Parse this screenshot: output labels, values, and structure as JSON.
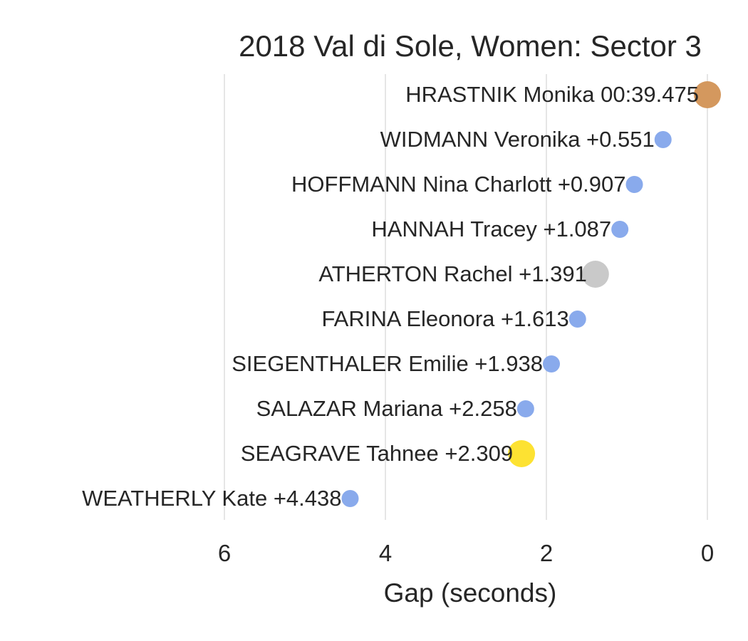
{
  "chart_data": {
    "type": "scatter",
    "title": "2018 Val di Sole, Women: Sector 3",
    "xlabel": "Gap (seconds)",
    "ylabel": "",
    "x_axis_inverted": true,
    "xlim": [
      0,
      7.6
    ],
    "xticks": [
      6,
      4,
      2,
      0
    ],
    "grid": "vertical",
    "points": [
      {
        "label": "HRASTNIK Monika 00:39.475",
        "gap": 0.0,
        "color": "#d4985e",
        "marker": "large"
      },
      {
        "label": "WIDMANN Veronika +0.551",
        "gap": 0.551,
        "color": "#89aaec",
        "marker": "small"
      },
      {
        "label": "HOFFMANN Nina Charlott +0.907",
        "gap": 0.907,
        "color": "#89aaec",
        "marker": "small"
      },
      {
        "label": "HANNAH Tracey +1.087",
        "gap": 1.087,
        "color": "#89aaec",
        "marker": "small"
      },
      {
        "label": "ATHERTON Rachel +1.391",
        "gap": 1.391,
        "color": "#c9c9c9",
        "marker": "large"
      },
      {
        "label": "FARINA Eleonora +1.613",
        "gap": 1.613,
        "color": "#89aaec",
        "marker": "small"
      },
      {
        "label": "SIEGENTHALER Emilie +1.938",
        "gap": 1.938,
        "color": "#89aaec",
        "marker": "small"
      },
      {
        "label": "SALAZAR Mariana +2.258",
        "gap": 2.258,
        "color": "#89aaec",
        "marker": "small"
      },
      {
        "label": "SEAGRAVE Tahnee +2.309",
        "gap": 2.309,
        "color": "#fde232",
        "marker": "large"
      },
      {
        "label": "WEATHERLY Kate +4.438",
        "gap": 4.438,
        "color": "#89aaec",
        "marker": "small"
      }
    ]
  }
}
